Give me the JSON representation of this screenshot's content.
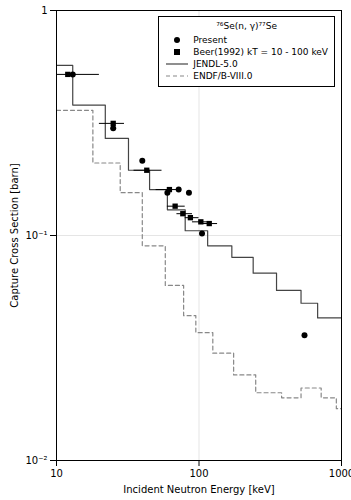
{
  "chart_data": {
    "type": "line",
    "title": "⁷⁶Se(n, γ)⁷⁷Se",
    "xlabel": "Incident Neutron Energy [keV]",
    "ylabel": "Capture Cross Section [barn]",
    "log": true,
    "xlim": [
      10,
      1000
    ],
    "ylim": [
      0.01,
      1.0
    ],
    "xticks": [
      10,
      100,
      1000
    ],
    "yticks": [
      {
        "value": 0.01,
        "label": "10⁻²"
      },
      {
        "value": 0.1,
        "label": "10⁻¹"
      },
      1
    ],
    "grid": true,
    "legend": "upper right",
    "series": [
      {
        "name": "Present",
        "type": "scatter",
        "marker": "circle",
        "color": "black",
        "x": [
          13.0,
          25.0,
          40.0,
          60.0,
          72.0,
          85.0,
          105.0,
          550.0
        ],
        "values": [
          0.52,
          0.3,
          0.215,
          0.155,
          0.16,
          0.155,
          0.102,
          0.036
        ]
      },
      {
        "name": "Beer(1992) kT = 10 - 100 keV",
        "type": "scatter",
        "marker": "square",
        "color": "black",
        "x": [
          12.0,
          25.0,
          43.0,
          62.0,
          68.0,
          77.0,
          87.0,
          103.0,
          118.0
        ],
        "values": [
          0.52,
          0.315,
          0.195,
          0.16,
          0.135,
          0.125,
          0.12,
          0.115,
          0.113
        ],
        "xerr_lo": [
          2.0,
          5.0,
          8.0,
          12.0,
          8.0,
          7.0,
          7.0,
          13.0,
          13.0
        ],
        "xerr_hi": [
          8.0,
          5.0,
          12.0,
          8.0,
          12.0,
          13.0,
          13.0,
          12.0,
          17.0
        ]
      },
      {
        "name": "JENDL-5.0",
        "type": "line",
        "line_style": "solid",
        "color": "#444444",
        "x": [
          10,
          13,
          13,
          22,
          22,
          32,
          32,
          45,
          45,
          60,
          60,
          80,
          80,
          115,
          115,
          170,
          170,
          240,
          240,
          350,
          350,
          520,
          520,
          680,
          680,
          1000
        ],
        "values": [
          0.57,
          0.57,
          0.38,
          0.38,
          0.27,
          0.27,
          0.195,
          0.195,
          0.16,
          0.16,
          0.13,
          0.13,
          0.105,
          0.105,
          0.09,
          0.09,
          0.08,
          0.08,
          0.068,
          0.068,
          0.057,
          0.057,
          0.05,
          0.05,
          0.043,
          0.043
        ]
      },
      {
        "name": "ENDF/B-VIII.0",
        "type": "line",
        "line_style": "dashed",
        "color": "#888888",
        "x": [
          10,
          18,
          18,
          28,
          28,
          40,
          40,
          58,
          58,
          78,
          78,
          95,
          95,
          125,
          125,
          175,
          175,
          250,
          250,
          380,
          380,
          520,
          520,
          720,
          720,
          920,
          920,
          1000
        ],
        "values": [
          0.36,
          0.36,
          0.21,
          0.21,
          0.155,
          0.155,
          0.09,
          0.09,
          0.06,
          0.06,
          0.044,
          0.044,
          0.037,
          0.037,
          0.03,
          0.03,
          0.024,
          0.024,
          0.02,
          0.02,
          0.019,
          0.019,
          0.021,
          0.021,
          0.019,
          0.019,
          0.017,
          0.017
        ]
      }
    ]
  }
}
